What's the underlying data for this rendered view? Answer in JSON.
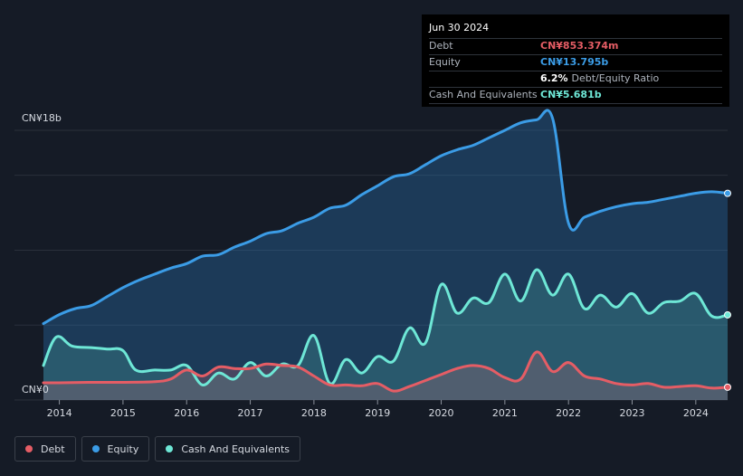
{
  "tooltip": {
    "date": "Jun 30 2024",
    "rows": [
      {
        "label": "Debt",
        "value": "CN¥853.374m",
        "color": "#e55d65"
      },
      {
        "label": "Equity",
        "value": "CN¥13.795b",
        "color": "#3b9ce6"
      }
    ],
    "ratio_value": "6.2%",
    "ratio_label": "Debt/Equity Ratio",
    "cash": {
      "label": "Cash And Equivalents",
      "value": "CN¥5.681b",
      "color": "#6ee7d6"
    }
  },
  "legend": [
    {
      "label": "Debt",
      "color": "#e55d65"
    },
    {
      "label": "Equity",
      "color": "#3b9ce6"
    },
    {
      "label": "Cash And Equivalents",
      "color": "#6ee7d6"
    }
  ],
  "chart_data": {
    "type": "area",
    "title": "",
    "xlabel": "",
    "ylabel": "",
    "y_unit": "CN¥ billions",
    "ylim": [
      0,
      18
    ],
    "xlim": [
      2013.75,
      2024.5
    ],
    "y_tick_labels": [
      {
        "value": 18,
        "label": "CN¥18b"
      },
      {
        "value": 0,
        "label": "CN¥0"
      }
    ],
    "x_ticks": [
      2014,
      2015,
      2016,
      2017,
      2018,
      2019,
      2020,
      2021,
      2022,
      2023,
      2024
    ],
    "series": [
      {
        "name": "Equity",
        "color": "#3b9ce6",
        "points": [
          [
            2013.75,
            5.1
          ],
          [
            2014.0,
            5.7
          ],
          [
            2014.25,
            6.1
          ],
          [
            2014.5,
            6.3
          ],
          [
            2014.75,
            6.9
          ],
          [
            2015.0,
            7.5
          ],
          [
            2015.25,
            8.0
          ],
          [
            2015.5,
            8.4
          ],
          [
            2015.75,
            8.8
          ],
          [
            2016.0,
            9.1
          ],
          [
            2016.25,
            9.6
          ],
          [
            2016.5,
            9.7
          ],
          [
            2016.75,
            10.2
          ],
          [
            2017.0,
            10.6
          ],
          [
            2017.25,
            11.1
          ],
          [
            2017.5,
            11.3
          ],
          [
            2017.75,
            11.8
          ],
          [
            2018.0,
            12.2
          ],
          [
            2018.25,
            12.8
          ],
          [
            2018.5,
            13.0
          ],
          [
            2018.75,
            13.7
          ],
          [
            2019.0,
            14.3
          ],
          [
            2019.25,
            14.9
          ],
          [
            2019.5,
            15.1
          ],
          [
            2019.75,
            15.7
          ],
          [
            2020.0,
            16.3
          ],
          [
            2020.25,
            16.7
          ],
          [
            2020.5,
            17.0
          ],
          [
            2020.75,
            17.5
          ],
          [
            2021.0,
            18.0
          ],
          [
            2021.25,
            18.5
          ],
          [
            2021.5,
            18.7
          ],
          [
            2021.75,
            18.8
          ],
          [
            2022.0,
            11.8
          ],
          [
            2022.25,
            12.2
          ],
          [
            2022.5,
            12.6
          ],
          [
            2022.75,
            12.9
          ],
          [
            2023.0,
            13.1
          ],
          [
            2023.25,
            13.2
          ],
          [
            2023.5,
            13.4
          ],
          [
            2023.75,
            13.6
          ],
          [
            2024.0,
            13.8
          ],
          [
            2024.25,
            13.9
          ],
          [
            2024.5,
            13.795
          ]
        ]
      },
      {
        "name": "Cash And Equivalents",
        "color": "#6ee7d6",
        "points": [
          [
            2013.75,
            2.3
          ],
          [
            2013.95,
            4.2
          ],
          [
            2014.2,
            3.6
          ],
          [
            2014.5,
            3.5
          ],
          [
            2014.75,
            3.4
          ],
          [
            2015.0,
            3.3
          ],
          [
            2015.2,
            2.0
          ],
          [
            2015.5,
            2.0
          ],
          [
            2015.75,
            2.0
          ],
          [
            2016.0,
            2.3
          ],
          [
            2016.25,
            1.0
          ],
          [
            2016.5,
            1.8
          ],
          [
            2016.75,
            1.4
          ],
          [
            2017.0,
            2.5
          ],
          [
            2017.25,
            1.6
          ],
          [
            2017.5,
            2.4
          ],
          [
            2017.75,
            2.3
          ],
          [
            2018.0,
            4.3
          ],
          [
            2018.25,
            1.1
          ],
          [
            2018.5,
            2.7
          ],
          [
            2018.75,
            1.8
          ],
          [
            2019.0,
            2.9
          ],
          [
            2019.25,
            2.6
          ],
          [
            2019.5,
            4.8
          ],
          [
            2019.75,
            3.8
          ],
          [
            2020.0,
            7.7
          ],
          [
            2020.25,
            5.8
          ],
          [
            2020.5,
            6.8
          ],
          [
            2020.75,
            6.5
          ],
          [
            2021.0,
            8.4
          ],
          [
            2021.25,
            6.6
          ],
          [
            2021.5,
            8.7
          ],
          [
            2021.75,
            7.0
          ],
          [
            2022.0,
            8.4
          ],
          [
            2022.25,
            6.1
          ],
          [
            2022.5,
            7.0
          ],
          [
            2022.75,
            6.2
          ],
          [
            2023.0,
            7.1
          ],
          [
            2023.25,
            5.8
          ],
          [
            2023.5,
            6.5
          ],
          [
            2023.75,
            6.6
          ],
          [
            2024.0,
            7.1
          ],
          [
            2024.25,
            5.6
          ],
          [
            2024.5,
            5.681
          ]
        ]
      },
      {
        "name": "Debt",
        "color": "#e55d65",
        "points": [
          [
            2013.75,
            1.15
          ],
          [
            2014.0,
            1.15
          ],
          [
            2014.5,
            1.18
          ],
          [
            2015.0,
            1.18
          ],
          [
            2015.5,
            1.22
          ],
          [
            2015.75,
            1.4
          ],
          [
            2016.0,
            2.0
          ],
          [
            2016.25,
            1.6
          ],
          [
            2016.5,
            2.2
          ],
          [
            2016.75,
            2.1
          ],
          [
            2017.0,
            2.1
          ],
          [
            2017.25,
            2.4
          ],
          [
            2017.5,
            2.3
          ],
          [
            2017.75,
            2.2
          ],
          [
            2018.0,
            1.6
          ],
          [
            2018.25,
            1.0
          ],
          [
            2018.5,
            1.0
          ],
          [
            2018.75,
            0.95
          ],
          [
            2019.0,
            1.1
          ],
          [
            2019.25,
            0.6
          ],
          [
            2019.5,
            0.9
          ],
          [
            2019.75,
            1.3
          ],
          [
            2020.0,
            1.7
          ],
          [
            2020.25,
            2.1
          ],
          [
            2020.5,
            2.3
          ],
          [
            2020.75,
            2.1
          ],
          [
            2021.0,
            1.5
          ],
          [
            2021.25,
            1.4
          ],
          [
            2021.5,
            3.2
          ],
          [
            2021.75,
            1.9
          ],
          [
            2022.0,
            2.5
          ],
          [
            2022.25,
            1.6
          ],
          [
            2022.5,
            1.4
          ],
          [
            2022.75,
            1.1
          ],
          [
            2023.0,
            1.0
          ],
          [
            2023.25,
            1.1
          ],
          [
            2023.5,
            0.85
          ],
          [
            2023.75,
            0.9
          ],
          [
            2024.0,
            0.95
          ],
          [
            2024.25,
            0.8
          ],
          [
            2024.5,
            0.853374
          ]
        ]
      }
    ]
  }
}
